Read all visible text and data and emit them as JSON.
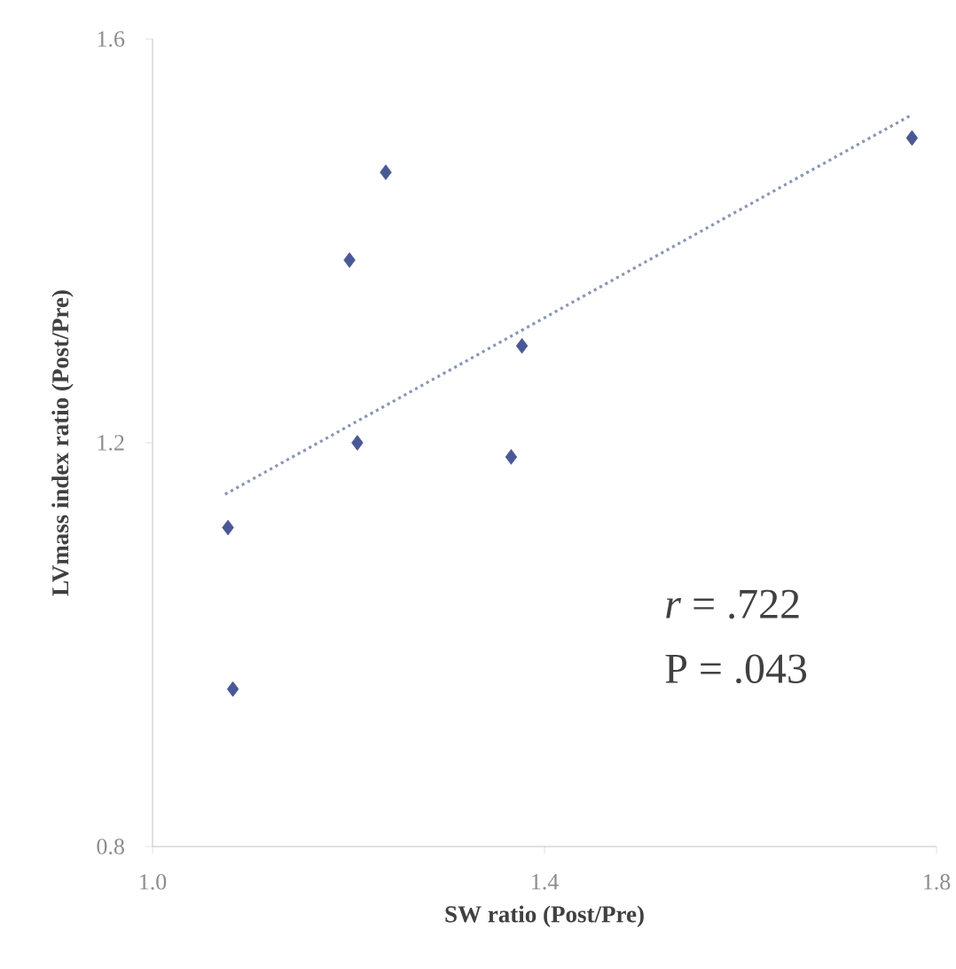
{
  "chart_data": {
    "type": "scatter",
    "xlabel": "SW ratio (Post/Pre)",
    "ylabel": "LVmass index ratio (Post/Pre)",
    "xlim": [
      1.0,
      1.8
    ],
    "xticks": [
      {
        "value": 1.0,
        "label": "1.0"
      },
      1.4,
      1.8
    ],
    "ylim": [
      0.8,
      1.6
    ],
    "yticks": [
      0.8,
      1.2,
      1.6
    ],
    "grid": false,
    "annotations": [
      "*r* = .722",
      "P = .043"
    ],
    "series": [
      {
        "color": "#4a5896",
        "marker": "diamond",
        "x": [
          1.775,
          1.238,
          1.201,
          1.377,
          1.209,
          1.366,
          1.077,
          1.082
        ],
        "values": [
          1.502,
          1.468,
          1.381,
          1.296,
          1.2,
          1.186,
          1.116,
          0.956
        ]
      },
      {
        "type": "line",
        "color": "#8a96b4",
        "marker": "none",
        "line_style": "dotted",
        "x": [
          1.074,
          1.773
        ],
        "values": [
          1.149,
          1.524
        ]
      }
    ]
  }
}
